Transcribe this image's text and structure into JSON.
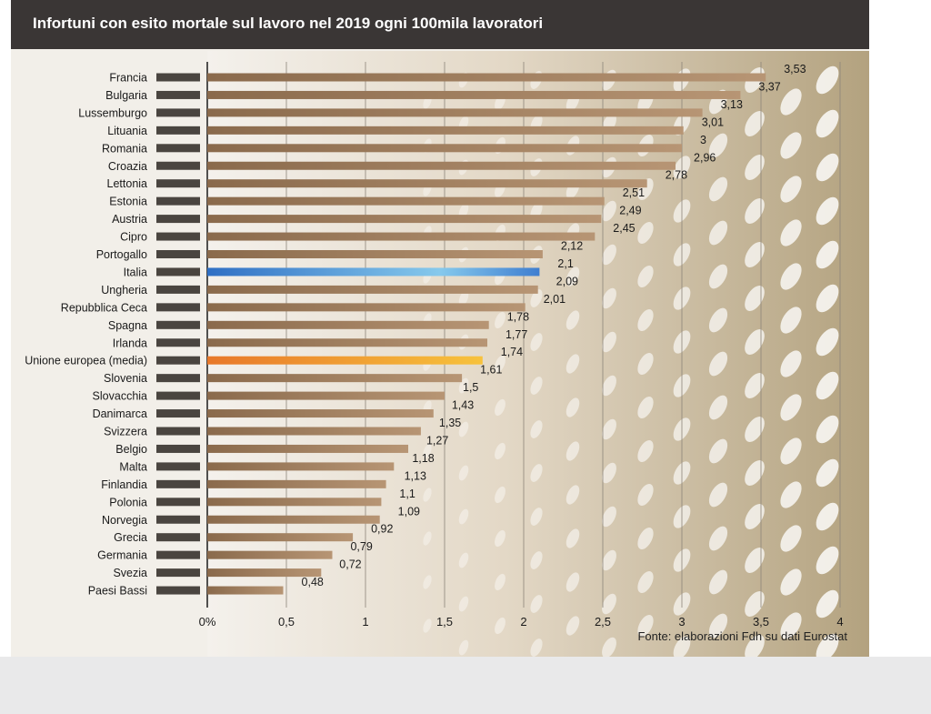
{
  "chart_data": {
    "type": "bar",
    "orientation": "horizontal",
    "title": "Infortuni con esito mortale sul lavoro nel 2019 ogni 100mila lavoratori",
    "source": "Fonte: elaborazioni Fdh su dati Eurostat",
    "categories": [
      "Francia",
      "Bulgaria",
      "Lussemburgo",
      "Lituania",
      "Romania",
      "Croazia",
      "Lettonia",
      "Estonia",
      "Austria",
      "Cipro",
      "Portogallo",
      "Italia",
      "Ungheria",
      "Repubblica Ceca",
      "Spagna",
      "Irlanda",
      "Unione europea (media)",
      "Slovenia",
      "Slovacchia",
      "Danimarca",
      "Svizzera",
      "Belgio",
      "Malta",
      "Finlandia",
      "Polonia",
      "Norvegia",
      "Grecia",
      "Germania",
      "Svezia",
      "Paesi Bassi"
    ],
    "values": [
      3.53,
      3.37,
      3.13,
      3.01,
      3,
      2.96,
      2.78,
      2.51,
      2.49,
      2.45,
      2.12,
      2.1,
      2.09,
      2.01,
      1.78,
      1.77,
      1.74,
      1.61,
      1.5,
      1.43,
      1.35,
      1.27,
      1.18,
      1.13,
      1.1,
      1.09,
      0.92,
      0.79,
      0.72,
      0.48
    ],
    "value_labels": [
      "3,53",
      "3,37",
      "3,13",
      "3,01",
      "3",
      "2,96",
      "2,78",
      "2,51",
      "2,49",
      "2,45",
      "2,12",
      "2,1",
      "2,09",
      "2,01",
      "1,78",
      "1,77",
      "1,74",
      "1,61",
      "1,5",
      "1,43",
      "1,35",
      "1,27",
      "1,18",
      "1,13",
      "1,1",
      "1,09",
      "0,92",
      "0,79",
      "0,72",
      "0,48"
    ],
    "highlight": {
      "Italia": "#4a8fd8",
      "Unione europea (media)": "#f0a035"
    },
    "bar_color": "#a88462",
    "xlim": [
      0,
      4
    ],
    "x_ticks": [
      0,
      0.5,
      1,
      1.5,
      2,
      2.5,
      3,
      3.5,
      4
    ],
    "x_tick_labels": [
      "0%",
      "0,5",
      "1",
      "1,5",
      "2",
      "2,5",
      "3",
      "3,5",
      "4"
    ],
    "grid": true
  }
}
